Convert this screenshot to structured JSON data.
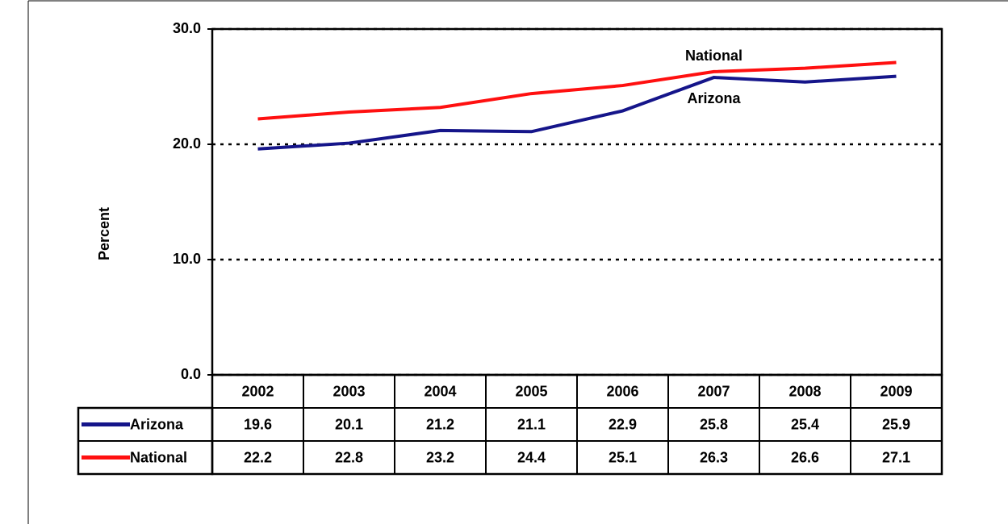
{
  "chart_data": {
    "type": "line",
    "y_label": "Percent",
    "categories": [
      "2002",
      "2003",
      "2004",
      "2005",
      "2006",
      "2007",
      "2008",
      "2009"
    ],
    "series": [
      {
        "name": "Arizona",
        "color": "#15158a",
        "values": [
          19.6,
          20.1,
          21.2,
          21.1,
          22.9,
          25.8,
          25.4,
          25.9
        ]
      },
      {
        "name": "National",
        "color": "#ff1010",
        "values": [
          22.2,
          22.8,
          23.2,
          24.4,
          25.1,
          26.3,
          26.6,
          27.1
        ]
      }
    ],
    "annotations": [
      {
        "text": "National",
        "x": "2007",
        "y": 27.6
      },
      {
        "text": "Arizona",
        "x": "2007",
        "y": 23.9
      }
    ],
    "ylim": [
      0,
      30
    ],
    "yticks": [
      {
        "value": 0,
        "label": "0.0"
      },
      {
        "value": 10,
        "label": "10.0"
      },
      {
        "value": 20,
        "label": "20.0"
      },
      {
        "value": 30,
        "label": "30.0"
      }
    ],
    "grid": true
  }
}
